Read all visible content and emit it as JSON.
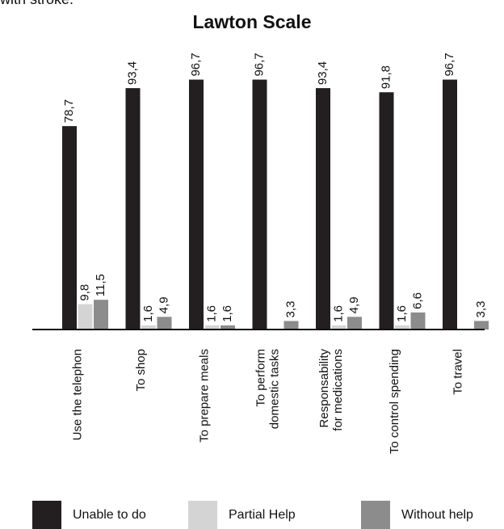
{
  "caption": "with stroke.",
  "chart_data": {
    "type": "bar",
    "title": "Lawton Scale",
    "xlabel": "",
    "ylabel": "",
    "ylim": [
      0,
      100
    ],
    "categories": [
      [
        "Use the telephon"
      ],
      [
        "To shop"
      ],
      [
        "To prepare meals"
      ],
      [
        "To perform",
        "domestic tasks"
      ],
      [
        "Responsability",
        "for medications"
      ],
      [
        "To control spending"
      ],
      [
        "To travel"
      ]
    ],
    "series": [
      {
        "name": "Unable to do",
        "color": "#231f20",
        "values": [
          78.7,
          93.4,
          96.7,
          96.7,
          93.4,
          91.8,
          96.7
        ],
        "labels": [
          "78,7",
          "93,4",
          "96,7",
          "96,7",
          "93,4",
          "91,8",
          "96,7"
        ]
      },
      {
        "name": "Partial Help",
        "color": "#d4d4d4",
        "values": [
          9.8,
          1.6,
          1.6,
          0,
          1.6,
          1.6,
          0
        ],
        "labels": [
          "9,8",
          "1,6",
          "1,6",
          "",
          "1,6",
          "1,6",
          ""
        ]
      },
      {
        "name": "Without help",
        "color": "#8c8c8c",
        "values": [
          11.5,
          4.9,
          1.6,
          3.3,
          4.9,
          6.6,
          3.3
        ],
        "labels": [
          "11,5",
          "4,9",
          "1,6",
          "3,3",
          "4,9",
          "6,6",
          "3,3"
        ]
      }
    ],
    "grid": false,
    "legend_position": "bottom"
  }
}
